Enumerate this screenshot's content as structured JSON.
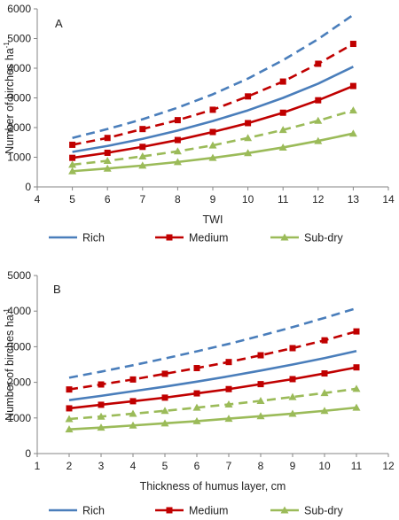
{
  "figure": {
    "legend_labels": [
      "Rich",
      "Medium",
      "Sub-dry"
    ],
    "colors": {
      "Rich": "#4a7ebb",
      "Medium": "#c00000",
      "Sub-dry": "#9bbb59"
    }
  },
  "chart_data": [
    {
      "type": "line",
      "panel_label": "A",
      "xlabel": "TWI",
      "ylabel": "Number of birches ha",
      "ylabel_superscript": "-1",
      "xlim": [
        4,
        14
      ],
      "ylim": [
        0,
        6000
      ],
      "xticks": [
        4,
        5,
        6,
        7,
        8,
        9,
        10,
        11,
        12,
        13,
        14
      ],
      "yticks": [
        0,
        1000,
        2000,
        3000,
        4000,
        5000,
        6000
      ],
      "grid": false,
      "legend_position": "bottom",
      "x": [
        5,
        6,
        7,
        8,
        9,
        10,
        11,
        12,
        13
      ],
      "series": [
        {
          "name": "Rich",
          "style": "solid",
          "marker": "none",
          "values": [
            1180,
            1380,
            1620,
            1900,
            2220,
            2580,
            3000,
            3480,
            4050
          ]
        },
        {
          "name": "Rich",
          "style": "dashed",
          "marker": "none",
          "in_legend": false,
          "values": [
            1650,
            1950,
            2280,
            2670,
            3120,
            3650,
            4270,
            4980,
            5800
          ]
        },
        {
          "name": "Medium",
          "style": "solid",
          "marker": "square",
          "values": [
            980,
            1150,
            1350,
            1580,
            1850,
            2150,
            2500,
            2920,
            3400
          ]
        },
        {
          "name": "Medium",
          "style": "dashed",
          "marker": "square",
          "in_legend": false,
          "values": [
            1420,
            1650,
            1950,
            2250,
            2600,
            3050,
            3550,
            4150,
            4820
          ]
        },
        {
          "name": "Sub-dry",
          "style": "solid",
          "marker": "triangle",
          "values": [
            530,
            620,
            720,
            840,
            980,
            1140,
            1330,
            1550,
            1800
          ]
        },
        {
          "name": "Sub-dry",
          "style": "dashed",
          "marker": "triangle",
          "in_legend": false,
          "values": [
            750,
            880,
            1030,
            1200,
            1400,
            1650,
            1920,
            2230,
            2580
          ]
        }
      ]
    },
    {
      "type": "line",
      "panel_label": "B",
      "xlabel": "Thickness of humus layer, cm",
      "ylabel": "Number of birches ha",
      "ylabel_superscript": "-1",
      "xlim": [
        1,
        12
      ],
      "ylim": [
        0,
        5000
      ],
      "xticks": [
        1,
        2,
        3,
        4,
        5,
        6,
        7,
        8,
        9,
        10,
        11,
        12
      ],
      "yticks": [
        0,
        1000,
        2000,
        3000,
        4000,
        5000
      ],
      "grid": false,
      "legend_position": "bottom",
      "x": [
        2,
        3,
        4,
        5,
        6,
        7,
        8,
        9,
        10,
        11
      ],
      "series": [
        {
          "name": "Rich",
          "style": "solid",
          "marker": "none",
          "values": [
            1500,
            1620,
            1750,
            1880,
            2020,
            2170,
            2330,
            2500,
            2680,
            2880
          ]
        },
        {
          "name": "Rich",
          "style": "dashed",
          "marker": "none",
          "in_legend": false,
          "values": [
            2130,
            2300,
            2480,
            2670,
            2870,
            3080,
            3310,
            3550,
            3810,
            4080
          ]
        },
        {
          "name": "Medium",
          "style": "solid",
          "marker": "square",
          "values": [
            1270,
            1370,
            1470,
            1570,
            1690,
            1810,
            1950,
            2090,
            2250,
            2420
          ]
        },
        {
          "name": "Medium",
          "style": "dashed",
          "marker": "square",
          "in_legend": false,
          "values": [
            1800,
            1940,
            2080,
            2240,
            2400,
            2570,
            2760,
            2960,
            3180,
            3430
          ]
        },
        {
          "name": "Sub-dry",
          "style": "solid",
          "marker": "triangle",
          "values": [
            680,
            730,
            790,
            850,
            910,
            980,
            1050,
            1120,
            1200,
            1290
          ]
        },
        {
          "name": "Sub-dry",
          "style": "dashed",
          "marker": "triangle",
          "in_legend": false,
          "values": [
            970,
            1040,
            1120,
            1200,
            1290,
            1380,
            1480,
            1590,
            1700,
            1820
          ]
        }
      ]
    }
  ]
}
